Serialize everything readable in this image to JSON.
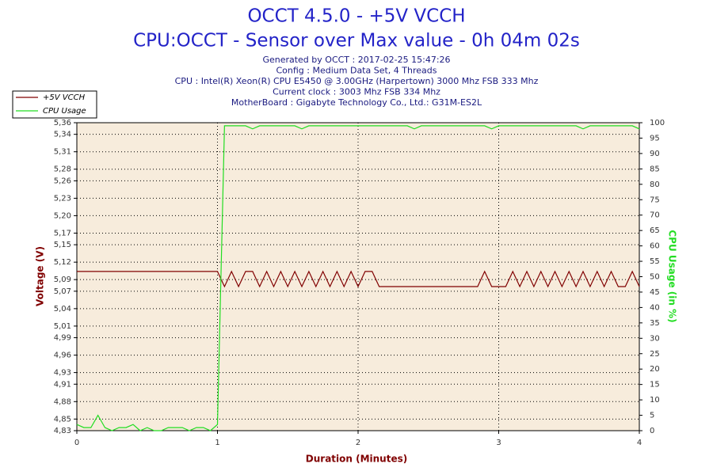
{
  "chart_data": {
    "type": "line",
    "title": "OCCT 4.5.0 - +5V VCCH",
    "subtitle": "CPU:OCCT - Sensor over Max value - 0h 04m 02s",
    "info": [
      "Generated by OCCT : 2017-02-25 15:47:26",
      "Config : Medium Data Set, 4 Threads",
      "CPU : Intel(R) Xeon(R) CPU E5450 @ 3.00GHz (Harpertown) 3000 Mhz FSB 333 Mhz",
      "Current clock : 3003 Mhz FSB 334 Mhz",
      "MotherBoard : Gigabyte Technology Co., Ltd.: G31M-ES2L"
    ],
    "xlabel": "Duration (Minutes)",
    "ylabel": "Voltage (V)",
    "y2label": "CPU Usage (in %)",
    "xlim": [
      0,
      4
    ],
    "xticks": [
      0,
      1,
      2,
      3,
      4
    ],
    "ylim": [
      4.83,
      5.36
    ],
    "yticks": [
      {
        "value": 4.83,
        "label": "4,83"
      },
      {
        "value": 4.85,
        "label": "4,85"
      },
      {
        "value": 4.88,
        "label": "4,88"
      },
      {
        "value": 4.91,
        "label": "4,91"
      },
      {
        "value": 4.93,
        "label": "4,93"
      },
      {
        "value": 4.96,
        "label": "4,96"
      },
      {
        "value": 4.99,
        "label": "4,99"
      },
      {
        "value": 5.01,
        "label": "5,01"
      },
      {
        "value": 5.04,
        "label": "5,04"
      },
      {
        "value": 5.07,
        "label": "5,07"
      },
      {
        "value": 5.09,
        "label": "5,09"
      },
      {
        "value": 5.12,
        "label": "5,12"
      },
      {
        "value": 5.15,
        "label": "5,15"
      },
      {
        "value": 5.17,
        "label": "5,17"
      },
      {
        "value": 5.2,
        "label": "5,20"
      },
      {
        "value": 5.23,
        "label": "5,23"
      },
      {
        "value": 5.26,
        "label": "5,26"
      },
      {
        "value": 5.28,
        "label": "5,28"
      },
      {
        "value": 5.31,
        "label": "5,31"
      },
      {
        "value": 5.34,
        "label": "5,34"
      },
      {
        "value": 5.36,
        "label": "5,36"
      }
    ],
    "y2lim": [
      0,
      100
    ],
    "y2ticks": [
      0,
      5,
      10,
      15,
      20,
      25,
      30,
      35,
      40,
      45,
      50,
      55,
      60,
      65,
      70,
      75,
      80,
      85,
      90,
      95,
      100
    ],
    "grid": true,
    "legend": "top-left",
    "x": [
      0,
      0.05,
      0.1,
      0.15,
      0.2,
      0.25,
      0.3,
      0.35,
      0.4,
      0.45,
      0.5,
      0.55,
      0.6,
      0.65,
      0.7,
      0.75,
      0.8,
      0.85,
      0.9,
      0.95,
      1,
      1.05,
      1.1,
      1.15,
      1.2,
      1.25,
      1.3,
      1.35,
      1.4,
      1.45,
      1.5,
      1.55,
      1.6,
      1.65,
      1.7,
      1.75,
      1.8,
      1.85,
      1.9,
      1.95,
      2,
      2.05,
      2.1,
      2.15,
      2.2,
      2.25,
      2.3,
      2.35,
      2.4,
      2.45,
      2.5,
      2.55,
      2.6,
      2.65,
      2.7,
      2.75,
      2.8,
      2.85,
      2.9,
      2.95,
      3,
      3.05,
      3.1,
      3.15,
      3.2,
      3.25,
      3.3,
      3.35,
      3.4,
      3.45,
      3.5,
      3.55,
      3.6,
      3.65,
      3.7,
      3.75,
      3.8,
      3.85,
      3.9,
      3.95,
      4
    ],
    "series": [
      {
        "name": "+5V VCCH",
        "color": "#800000",
        "axis": "y",
        "values": [
          5.104,
          5.104,
          5.104,
          5.104,
          5.104,
          5.104,
          5.104,
          5.104,
          5.104,
          5.104,
          5.104,
          5.104,
          5.104,
          5.104,
          5.104,
          5.104,
          5.104,
          5.104,
          5.104,
          5.104,
          5.104,
          5.078,
          5.104,
          5.078,
          5.104,
          5.104,
          5.078,
          5.104,
          5.078,
          5.104,
          5.078,
          5.104,
          5.078,
          5.104,
          5.078,
          5.104,
          5.078,
          5.104,
          5.078,
          5.104,
          5.078,
          5.104,
          5.104,
          5.078,
          5.078,
          5.078,
          5.078,
          5.078,
          5.078,
          5.078,
          5.078,
          5.078,
          5.078,
          5.078,
          5.078,
          5.078,
          5.078,
          5.078,
          5.104,
          5.078,
          5.078,
          5.078,
          5.104,
          5.078,
          5.104,
          5.078,
          5.104,
          5.078,
          5.104,
          5.078,
          5.104,
          5.078,
          5.104,
          5.078,
          5.104,
          5.078,
          5.104,
          5.078,
          5.078,
          5.104,
          5.078
        ]
      },
      {
        "name": "CPU Usage",
        "color": "#22dd22",
        "axis": "y2",
        "values": [
          2,
          1,
          1,
          5,
          1,
          0,
          1,
          1,
          2,
          0,
          1,
          0,
          0,
          1,
          1,
          1,
          0,
          1,
          1,
          0,
          2,
          99,
          99,
          99,
          99,
          98,
          99,
          99,
          99,
          99,
          99,
          99,
          98,
          99,
          99,
          99,
          99,
          99,
          99,
          99,
          99,
          99,
          99,
          99,
          99,
          99,
          99,
          99,
          98,
          99,
          99,
          99,
          99,
          99,
          99,
          99,
          99,
          99,
          99,
          98,
          99,
          99,
          99,
          99,
          99,
          99,
          99,
          99,
          99,
          99,
          99,
          99,
          98,
          99,
          99,
          99,
          99,
          99,
          99,
          99,
          98
        ]
      }
    ]
  }
}
